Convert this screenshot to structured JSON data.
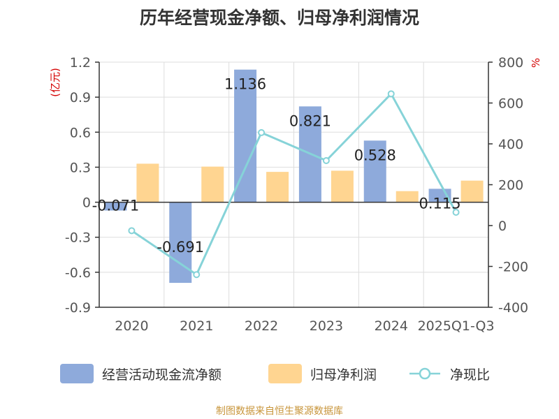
{
  "title": "历年经营现金净额、归母净利润情况",
  "source_text": "制图数据来自恒生聚源数据库",
  "legend": [
    {
      "label": "经营活动现金流净额",
      "color": "#8eaadb",
      "icon": "bar-swatch"
    },
    {
      "label": "归母净利润",
      "color": "#ffd591",
      "icon": "bar-swatch"
    },
    {
      "label": "净现比",
      "color": "#86d3d8",
      "icon": "line-circle"
    }
  ],
  "chart_data": {
    "type": "bar",
    "categories": [
      "2020",
      "2021",
      "2022",
      "2023",
      "2024",
      "2025Q1-Q3"
    ],
    "left_axis": {
      "unit": "(亿元)",
      "ylim": [
        -0.9,
        1.2
      ],
      "ticks": [
        "1.2",
        "0.9",
        "0.6",
        "0.3",
        "0",
        "-0.3",
        "-0.6",
        "-0.9"
      ]
    },
    "right_axis": {
      "unit": "%",
      "ylim": [
        -400,
        800
      ],
      "ticks": [
        "800",
        "600",
        "400",
        "200",
        "0",
        "-200",
        "-400"
      ]
    },
    "series": [
      {
        "name": "经营活动现金流净额",
        "axis": "left",
        "type": "bar",
        "color": "#8eaadb",
        "values": [
          -0.071,
          -0.691,
          1.136,
          0.821,
          0.528,
          0.115
        ],
        "labels": [
          "-0.071",
          "-0.691",
          "1.136",
          "0.821",
          "0.528",
          "0.115"
        ]
      },
      {
        "name": "归母净利润",
        "axis": "left",
        "type": "bar",
        "color": "#ffd591",
        "values": [
          0.33,
          0.305,
          0.26,
          0.27,
          0.095,
          0.185
        ]
      },
      {
        "name": "净现比",
        "axis": "right",
        "type": "line",
        "color": "#86d3d8",
        "values": [
          -25,
          -240,
          455,
          318,
          645,
          65
        ]
      }
    ],
    "grid": true,
    "legend_position": "bottom"
  }
}
